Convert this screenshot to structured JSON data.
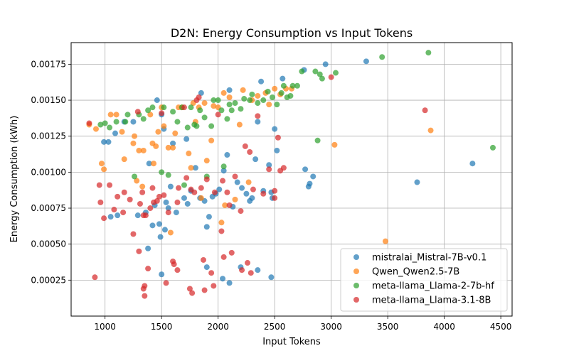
{
  "chart_data": {
    "type": "scatter",
    "title": "D2N: Energy Consumption vs Input Tokens",
    "xlabel": "Input Tokens",
    "ylabel": "Energy Consumption (kWh)",
    "xlim": [
      700,
      4600
    ],
    "ylim": [
      0.0,
      0.0019
    ],
    "xticks": [
      1000,
      1500,
      2000,
      2500,
      3000,
      3500,
      4000,
      4500
    ],
    "xtick_labels": [
      "1000",
      "1500",
      "2000",
      "2500",
      "3000",
      "3500",
      "4000",
      "4500"
    ],
    "yticks": [
      0.00025,
      0.0005,
      0.00075,
      0.001,
      0.00125,
      0.0015,
      0.00175
    ],
    "ytick_labels": [
      "0.00025",
      "0.00050",
      "0.00075",
      "0.00100",
      "0.00125",
      "0.00150",
      "0.00175"
    ],
    "grid": true,
    "legend_position": "lower-right",
    "series": [
      {
        "name": "mistralai_Mistral-7B-v0.1",
        "color": "#1f77b4",
        "points": [
          [
            990,
            0.00121
          ],
          [
            1030,
            0.00121
          ],
          [
            1090,
            0.00127
          ],
          [
            1110,
            0.0007
          ],
          [
            1050,
            0.00069
          ],
          [
            1170,
            0.00135
          ],
          [
            1250,
            0.00135
          ],
          [
            1290,
            0.0007
          ],
          [
            1380,
            0.00047
          ],
          [
            1390,
            0.00106
          ],
          [
            1420,
            0.00063
          ],
          [
            1460,
            0.0015
          ],
          [
            1480,
            0.00064
          ],
          [
            1490,
            0.00055
          ],
          [
            1500,
            0.0014
          ],
          [
            1520,
            0.0013
          ],
          [
            1530,
            0.0006
          ],
          [
            1540,
            0.00079
          ],
          [
            1580,
            0.0009
          ],
          [
            1600,
            0.0012
          ],
          [
            1630,
            0.00072
          ],
          [
            1700,
            0.00082
          ],
          [
            1720,
            0.00123
          ],
          [
            1730,
            0.00078
          ],
          [
            1760,
            0.00087
          ],
          [
            1800,
            0.00103
          ],
          [
            1840,
            0.00082
          ],
          [
            1880,
            0.0008
          ],
          [
            1900,
            0.00062
          ],
          [
            1920,
            0.00069
          ],
          [
            1950,
            0.00083
          ],
          [
            1980,
            0.00085
          ],
          [
            2010,
            0.00088
          ],
          [
            2050,
            0.00101
          ],
          [
            2080,
            0.00112
          ],
          [
            2100,
            0.00157
          ],
          [
            2130,
            0.00076
          ],
          [
            2170,
            0.00093
          ],
          [
            2210,
            0.00089
          ],
          [
            2250,
            0.00085
          ],
          [
            2280,
            0.0008
          ],
          [
            2300,
            0.00082
          ],
          [
            2330,
            0.00109
          ],
          [
            2350,
            0.00135
          ],
          [
            2380,
            0.00163
          ],
          [
            2400,
            0.00087
          ],
          [
            2450,
            0.00105
          ],
          [
            2470,
            0.00086
          ],
          [
            2480,
            0.00082
          ],
          [
            2500,
            0.0013
          ],
          [
            2520,
            0.00115
          ],
          [
            2570,
            0.00165
          ],
          [
            2760,
            0.00171
          ],
          [
            2770,
            0.00102
          ],
          [
            2800,
            0.0009
          ],
          [
            2810,
            0.00092
          ],
          [
            2840,
            0.00097
          ],
          [
            2950,
            0.00175
          ],
          [
            3310,
            0.00177
          ],
          [
            3760,
            0.00093
          ],
          [
            4250,
            0.00106
          ],
          [
            1850,
            0.00155
          ],
          [
            2200,
            0.00034
          ],
          [
            1500,
            0.00029
          ],
          [
            2100,
            0.00023
          ],
          [
            2040,
            0.00026
          ],
          [
            2350,
            0.00032
          ],
          [
            2470,
            0.00027
          ],
          [
            1900,
            0.00034
          ],
          [
            1360,
            0.00072
          ],
          [
            1440,
            0.00077
          ],
          [
            1560,
            0.00075
          ]
        ]
      },
      {
        "name": "Qwen_Qwen2.5-7B",
        "color": "#ff7f0e",
        "points": [
          [
            860,
            0.00133
          ],
          [
            920,
            0.0013
          ],
          [
            970,
            0.00106
          ],
          [
            990,
            0.00102
          ],
          [
            1050,
            0.0014
          ],
          [
            1100,
            0.0014
          ],
          [
            1150,
            0.00128
          ],
          [
            1170,
            0.00109
          ],
          [
            1250,
            0.0012
          ],
          [
            1260,
            0.00125
          ],
          [
            1280,
            0.00094
          ],
          [
            1300,
            0.00115
          ],
          [
            1340,
            0.00115
          ],
          [
            1400,
            0.0014
          ],
          [
            1420,
            0.0012
          ],
          [
            1430,
            0.00106
          ],
          [
            1450,
            0.00118
          ],
          [
            1470,
            0.00128
          ],
          [
            1500,
            0.00145
          ],
          [
            1520,
            0.00132
          ],
          [
            1560,
            0.00117
          ],
          [
            1580,
            0.00058
          ],
          [
            1600,
            0.00117
          ],
          [
            1650,
            0.00145
          ],
          [
            1680,
            0.00145
          ],
          [
            1740,
            0.00113
          ],
          [
            1760,
            0.00103
          ],
          [
            1780,
            0.00148
          ],
          [
            1800,
            0.00135
          ],
          [
            1830,
            0.00145
          ],
          [
            1850,
            0.00082
          ],
          [
            1880,
            0.00148
          ],
          [
            1900,
            0.00108
          ],
          [
            1940,
            0.00122
          ],
          [
            1960,
            0.00146
          ],
          [
            2000,
            0.00145
          ],
          [
            2030,
            0.00065
          ],
          [
            2050,
            0.00155
          ],
          [
            2060,
            0.00077
          ],
          [
            2100,
            0.00152
          ],
          [
            2150,
            0.00081
          ],
          [
            2190,
            0.00133
          ],
          [
            2220,
            0.00157
          ],
          [
            2270,
            0.00093
          ],
          [
            2300,
            0.0015
          ],
          [
            2350,
            0.00153
          ],
          [
            2420,
            0.00155
          ],
          [
            2450,
            0.00147
          ],
          [
            2500,
            0.00158
          ],
          [
            2550,
            0.00154
          ],
          [
            2600,
            0.00158
          ],
          [
            2650,
            0.00158
          ],
          [
            3030,
            0.00119
          ],
          [
            3480,
            0.00052
          ],
          [
            3880,
            0.00129
          ],
          [
            1330,
            0.0009
          ],
          [
            1620,
            0.00127
          ]
        ]
      },
      {
        "name": "meta-llama_Llama-2-7b-hf",
        "color": "#2ca02c",
        "points": [
          [
            960,
            0.00133
          ],
          [
            1000,
            0.00134
          ],
          [
            1040,
            0.00131
          ],
          [
            1100,
            0.00135
          ],
          [
            1180,
            0.00135
          ],
          [
            1200,
            0.0014
          ],
          [
            1260,
            0.00097
          ],
          [
            1300,
            0.0014
          ],
          [
            1340,
            0.00137
          ],
          [
            1380,
            0.00143
          ],
          [
            1420,
            0.00145
          ],
          [
            1500,
            0.001
          ],
          [
            1520,
            0.00145
          ],
          [
            1560,
            0.00098
          ],
          [
            1600,
            0.00142
          ],
          [
            1640,
            0.00135
          ],
          [
            1680,
            0.00145
          ],
          [
            1700,
            0.00091
          ],
          [
            1730,
            0.00131
          ],
          [
            1760,
            0.00145
          ],
          [
            1790,
            0.00133
          ],
          [
            1810,
            0.00132
          ],
          [
            1840,
            0.00143
          ],
          [
            1880,
            0.00138
          ],
          [
            1900,
            0.00097
          ],
          [
            1940,
            0.00132
          ],
          [
            1960,
            0.0015
          ],
          [
            2000,
            0.0015
          ],
          [
            2030,
            0.00143
          ],
          [
            2050,
            0.00104
          ],
          [
            2080,
            0.00137
          ],
          [
            2100,
            0.00147
          ],
          [
            2120,
            0.00143
          ],
          [
            2150,
            0.00148
          ],
          [
            2200,
            0.00144
          ],
          [
            2230,
            0.00151
          ],
          [
            2280,
            0.0015
          ],
          [
            2300,
            0.00154
          ],
          [
            2350,
            0.00148
          ],
          [
            2400,
            0.0015
          ],
          [
            2440,
            0.00156
          ],
          [
            2480,
            0.00152
          ],
          [
            2520,
            0.00147
          ],
          [
            2560,
            0.00155
          ],
          [
            2580,
            0.0016
          ],
          [
            2610,
            0.00152
          ],
          [
            2640,
            0.00153
          ],
          [
            2660,
            0.0016
          ],
          [
            2700,
            0.0016
          ],
          [
            2740,
            0.0017
          ],
          [
            2860,
            0.0017
          ],
          [
            2880,
            0.00122
          ],
          [
            2900,
            0.00168
          ],
          [
            2920,
            0.00165
          ],
          [
            3040,
            0.00169
          ],
          [
            3450,
            0.0018
          ],
          [
            3860,
            0.00183
          ],
          [
            4430,
            0.00117
          ]
        ]
      },
      {
        "name": "meta-llama_Llama-3.1-8B",
        "color": "#d62728",
        "points": [
          [
            860,
            0.00134
          ],
          [
            910,
            0.00027
          ],
          [
            950,
            0.00091
          ],
          [
            960,
            0.00079
          ],
          [
            990,
            0.00068
          ],
          [
            1040,
            0.00091
          ],
          [
            1080,
            0.00074
          ],
          [
            1110,
            0.00083
          ],
          [
            1170,
            0.00086
          ],
          [
            1160,
            0.00072
          ],
          [
            1220,
            0.00081
          ],
          [
            1250,
            0.00057
          ],
          [
            1300,
            0.00045
          ],
          [
            1310,
            0.00078
          ],
          [
            1330,
            0.00086
          ],
          [
            1340,
            0.0007
          ],
          [
            1350,
            0.00021
          ],
          [
            1340,
            0.00019
          ],
          [
            1350,
            0.00014
          ],
          [
            1360,
            0.0007
          ],
          [
            1380,
            0.00033
          ],
          [
            1400,
            0.00075
          ],
          [
            1430,
            0.00079
          ],
          [
            1460,
            0.0008
          ],
          [
            1480,
            0.00083
          ],
          [
            1500,
            0.00141
          ],
          [
            1520,
            0.00084
          ],
          [
            1540,
            0.00023
          ],
          [
            1560,
            0.00072
          ],
          [
            1600,
            0.00038
          ],
          [
            1610,
            0.00036
          ],
          [
            1640,
            0.00032
          ],
          [
            1650,
            0.00089
          ],
          [
            1700,
            0.00145
          ],
          [
            1720,
            0.00096
          ],
          [
            1750,
            0.00019
          ],
          [
            1760,
            0.00088
          ],
          [
            1770,
            0.00016
          ],
          [
            1790,
            0.00086
          ],
          [
            1810,
            0.0015
          ],
          [
            1830,
            0.00152
          ],
          [
            1850,
            0.00089
          ],
          [
            1870,
            0.00039
          ],
          [
            1880,
            0.00018
          ],
          [
            1900,
            0.00095
          ],
          [
            1940,
            0.0003
          ],
          [
            1960,
            0.00021
          ],
          [
            1970,
            0.00086
          ],
          [
            2000,
            0.0014
          ],
          [
            2030,
            0.00059
          ],
          [
            2040,
            0.00094
          ],
          [
            2050,
            0.00041
          ],
          [
            2080,
            0.00086
          ],
          [
            2100,
            0.00077
          ],
          [
            2120,
            0.00044
          ],
          [
            2150,
            0.00097
          ],
          [
            2200,
            0.00073
          ],
          [
            2210,
            0.00032
          ],
          [
            2240,
            0.00118
          ],
          [
            2260,
            0.00037
          ],
          [
            2280,
            0.00114
          ],
          [
            2290,
            0.0003
          ],
          [
            2310,
            0.00088
          ],
          [
            2350,
            0.00139
          ],
          [
            2400,
            0.00085
          ],
          [
            2450,
            0.00102
          ],
          [
            2500,
            0.00082
          ],
          [
            2530,
            0.00124
          ],
          [
            2550,
            0.00101
          ],
          [
            2580,
            0.00103
          ],
          [
            3000,
            0.00166
          ],
          [
            3830,
            0.00143
          ],
          [
            1290,
            0.00142
          ],
          [
            1420,
            0.00089
          ],
          [
            1640,
            0.00079
          ],
          [
            2500,
            0.00087
          ]
        ]
      }
    ]
  }
}
